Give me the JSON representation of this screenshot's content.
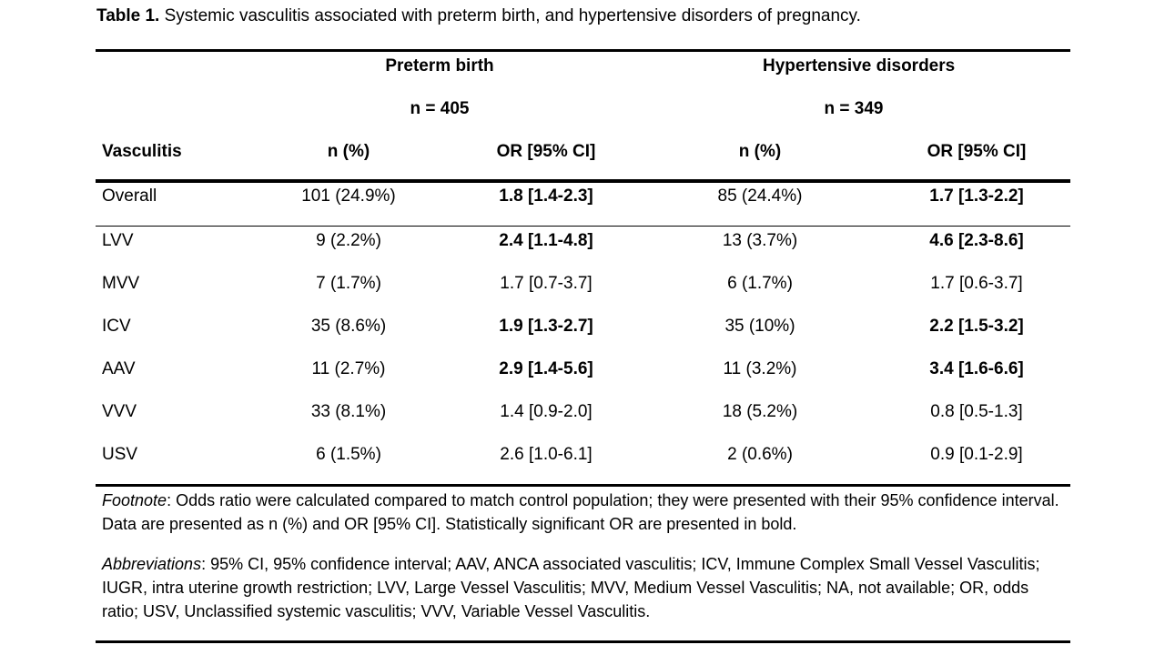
{
  "caption": {
    "label": "Table 1.",
    "text": " Systemic vasculitis associated with preterm birth, and hypertensive disorders of pregnancy."
  },
  "header": {
    "group1_title": "Preterm birth",
    "group1_n": "n = 405",
    "group2_title": "Hypertensive disorders",
    "group2_n": "n = 349",
    "col_vasculitis": "Vasculitis",
    "col_n1": "n (%)",
    "col_or1": "OR [95% CI]",
    "col_n2": "n (%)",
    "col_or2": "OR [95% CI]"
  },
  "rows": [
    {
      "name": "Overall",
      "pn": "101 (24.9%)",
      "por": "1.8 [1.4-2.3]",
      "por_bold": true,
      "hn": "85 (24.4%)",
      "hor": "1.7 [1.3-2.2]",
      "hor_bold": true
    },
    {
      "name": "LVV",
      "pn": "9 (2.2%)",
      "por": "2.4 [1.1-4.8]",
      "por_bold": true,
      "hn": "13 (3.7%)",
      "hor": "4.6 [2.3-8.6]",
      "hor_bold": true
    },
    {
      "name": "MVV",
      "pn": "7 (1.7%)",
      "por": "1.7 [0.7-3.7]",
      "por_bold": false,
      "hn": "6 (1.7%)",
      "hor": "1.7 [0.6-3.7]",
      "hor_bold": false
    },
    {
      "name": "ICV",
      "pn": "35 (8.6%)",
      "por": "1.9 [1.3-2.7]",
      "por_bold": true,
      "hn": "35 (10%)",
      "hor": "2.2 [1.5-3.2]",
      "hor_bold": true
    },
    {
      "name": "AAV",
      "pn": "11 (2.7%)",
      "por": "2.9 [1.4-5.6]",
      "por_bold": true,
      "hn": "11 (3.2%)",
      "hor": "3.4 [1.6-6.6]",
      "hor_bold": true
    },
    {
      "name": "VVV",
      "pn": "33 (8.1%)",
      "por": "1.4 [0.9-2.0]",
      "por_bold": false,
      "hn": "18 (5.2%)",
      "hor": "0.8 [0.5-1.3]",
      "hor_bold": false
    },
    {
      "name": "USV",
      "pn": "6 (1.5%)",
      "por": "2.6 [1.0-6.1]",
      "por_bold": false,
      "hn": "2 (0.6%)",
      "hor": "0.9 [0.1-2.9]",
      "hor_bold": false
    }
  ],
  "footnote": {
    "label": "Footnote",
    "text": ": Odds ratio were calculated compared to match control population; they were presented with their 95% confidence interval. Data are presented as n (%) and OR [95% CI]. Statistically significant OR are presented in bold."
  },
  "abbreviations": {
    "label": "Abbreviations",
    "text": ": 95% CI, 95% confidence interval; AAV, ANCA associated vasculitis; ICV, Immune Complex Small Vessel Vasculitis; IUGR, intra uterine growth restriction; LVV, Large Vessel Vasculitis; MVV, Medium Vessel Vasculitis; NA, not available; OR, odds ratio; USV, Unclassified systemic vasculitis; VVV, Variable Vessel Vasculitis."
  }
}
